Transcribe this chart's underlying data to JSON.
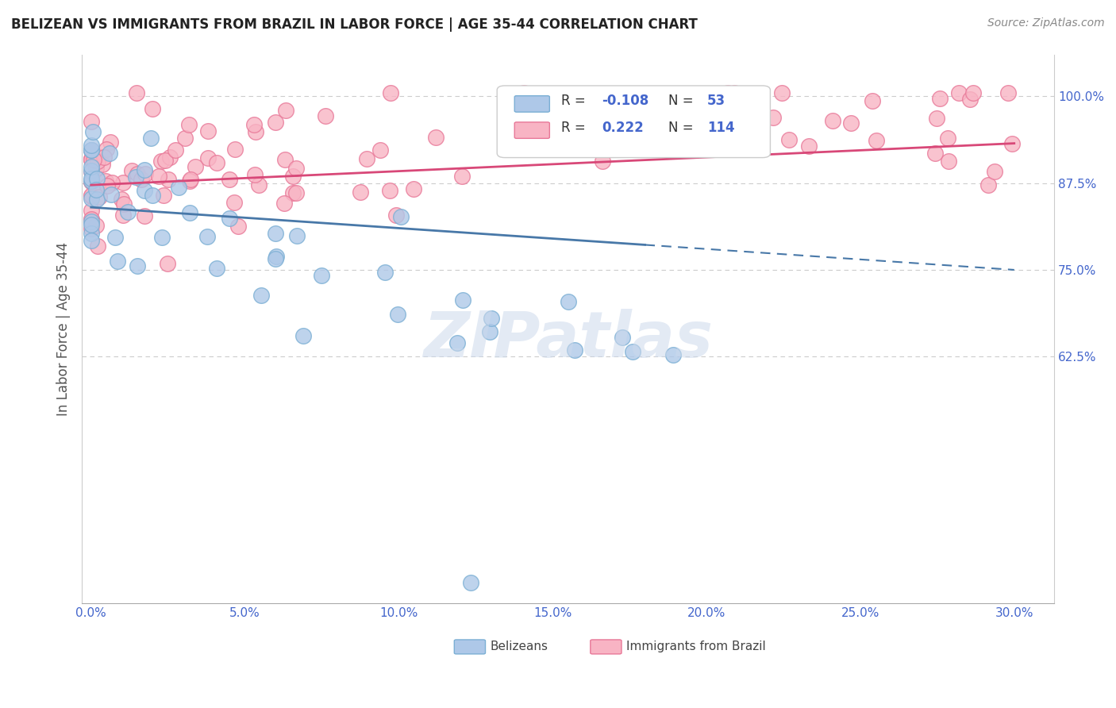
{
  "title": "BELIZEAN VS IMMIGRANTS FROM BRAZIL IN LABOR FORCE | AGE 35-44 CORRELATION CHART",
  "source": "Source: ZipAtlas.com",
  "ylabel": "In Labor Force | Age 35-44",
  "xlim": [
    -0.003,
    0.313
  ],
  "ylim": [
    0.27,
    1.06
  ],
  "xticks": [
    0.0,
    0.05,
    0.1,
    0.15,
    0.2,
    0.25,
    0.3
  ],
  "xticklabels": [
    "0.0%",
    "5.0%",
    "10.0%",
    "15.0%",
    "20.0%",
    "25.0%",
    "30.0%"
  ],
  "yticks": [
    0.625,
    0.75,
    0.875,
    1.0
  ],
  "yticklabels": [
    "62.5%",
    "75.0%",
    "87.5%",
    "100.0%"
  ],
  "belizean_R": -0.108,
  "belizean_N": 53,
  "brazil_R": 0.222,
  "brazil_N": 114,
  "blue_face": "#aec8e8",
  "blue_edge": "#7bafd4",
  "pink_face": "#f8b4c4",
  "pink_edge": "#e87898",
  "blue_line_color": "#4878a8",
  "pink_line_color": "#d84878",
  "watermark": "ZIPatlas",
  "tick_color": "#4466cc",
  "grid_color": "#cccccc",
  "title_color": "#222222",
  "ylabel_color": "#555555",
  "source_color": "#888888"
}
